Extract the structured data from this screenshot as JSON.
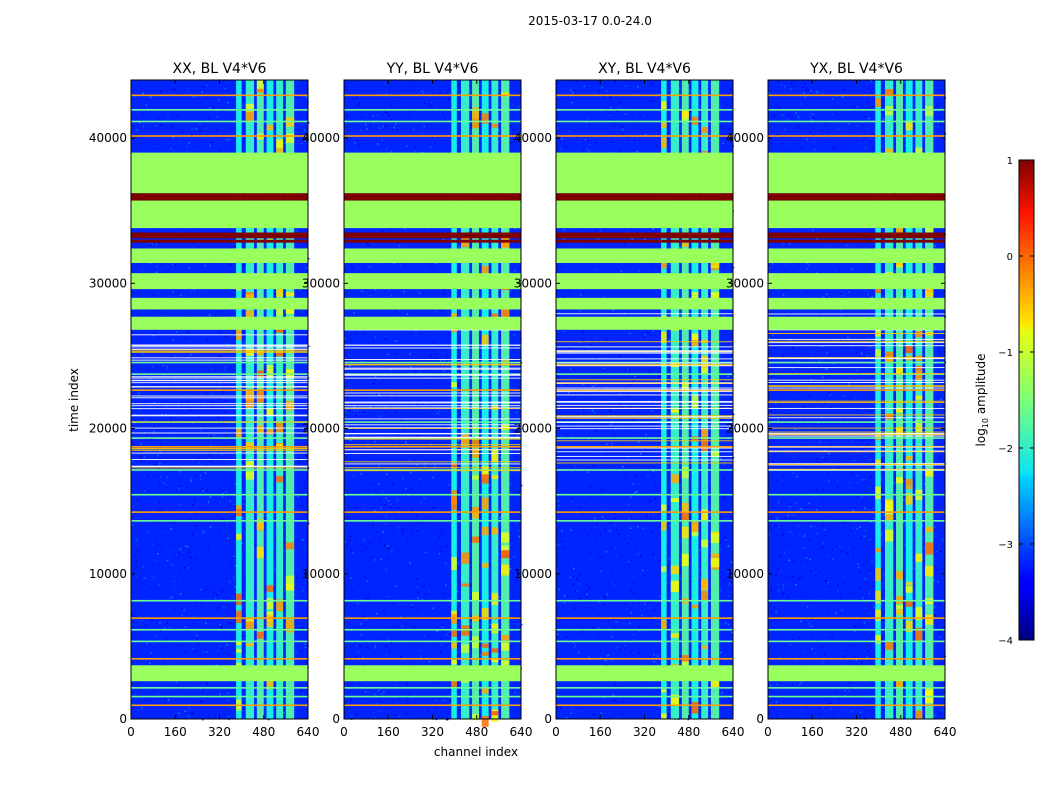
{
  "figure": {
    "suptitle": "2015-03-17 0.0-24.0",
    "xlabel": "channel index",
    "ylabel": "time index"
  },
  "chart_data": {
    "type": "heatmap",
    "x": {
      "label": "channel index",
      "range": [
        0,
        640
      ],
      "ticks": [
        0,
        160,
        320,
        480,
        640
      ]
    },
    "y": {
      "label": "time index",
      "range": [
        0,
        44000
      ],
      "ticks": [
        0,
        10000,
        20000,
        30000,
        40000
      ]
    },
    "panels": [
      {
        "title": "XX, BL V4*V6",
        "variant": 0
      },
      {
        "title": "YY, BL V4*V6",
        "variant": 1
      },
      {
        "title": "XY, BL V4*V6",
        "variant": 2
      },
      {
        "title": "YX, BL V4*V6",
        "variant": 3
      }
    ],
    "colorbar": {
      "label_pre": "log",
      "label_sub": "10",
      "label_post": " amplitude",
      "range": [
        -4,
        1
      ],
      "ticks": [
        "1",
        "0",
        "−1",
        "−2",
        "−3",
        "−4"
      ],
      "colormap": "jet"
    },
    "structure": {
      "background_log_amplitude": -3.2,
      "flagged_time_bands": [
        [
          2600,
          3700
        ],
        [
          26800,
          27700
        ],
        [
          28200,
          29000
        ],
        [
          29600,
          30700
        ],
        [
          31400,
          32400
        ],
        [
          33800,
          35700
        ],
        [
          36200,
          39000
        ]
      ],
      "saturated_time_bands": [
        [
          35700,
          36200
        ],
        [
          33100,
          33500
        ],
        [
          32800,
          33000
        ]
      ],
      "rfi_channel_ranges": [
        [
          380,
          400
        ],
        [
          415,
          445
        ],
        [
          455,
          480
        ],
        [
          490,
          515
        ],
        [
          525,
          550
        ],
        [
          560,
          590
        ]
      ],
      "horizontal_rfi_rows": [
        1000,
        1600,
        2200,
        4200,
        5400,
        6200,
        7000,
        8200,
        13700,
        14300,
        15500,
        17200,
        18800,
        19400,
        20500,
        22700,
        23800,
        24600,
        40200,
        41200,
        42000,
        43000
      ]
    }
  }
}
